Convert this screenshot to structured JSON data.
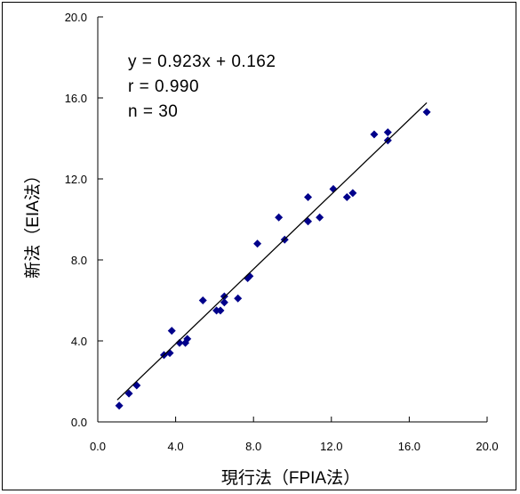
{
  "chart_data": {
    "type": "scatter",
    "title": "",
    "xlabel": "現行法（FPIA法）",
    "ylabel": "新法（EIA法）",
    "xlim": [
      0,
      20
    ],
    "ylim": [
      0,
      20
    ],
    "xticks": [
      "0.0",
      "4.0",
      "8.0",
      "12.0",
      "16.0",
      "20.0"
    ],
    "yticks": [
      "0.0",
      "4.0",
      "8.0",
      "12.0",
      "16.0",
      "20.0"
    ],
    "tick_values": [
      0,
      4,
      8,
      12,
      16,
      20
    ],
    "grid": false,
    "marker_color": "#00008b",
    "regression": {
      "slope": 0.923,
      "intercept": 0.162,
      "x_range": [
        1.0,
        16.9
      ]
    },
    "annotations": [
      "y = 0.923x + 0.162",
      "r = 0.990",
      "n = 30"
    ],
    "points": [
      {
        "x": 1.1,
        "y": 0.8
      },
      {
        "x": 1.6,
        "y": 1.4
      },
      {
        "x": 2.0,
        "y": 1.8
      },
      {
        "x": 3.4,
        "y": 3.3
      },
      {
        "x": 3.7,
        "y": 3.4
      },
      {
        "x": 3.8,
        "y": 4.5
      },
      {
        "x": 4.2,
        "y": 3.9
      },
      {
        "x": 4.5,
        "y": 3.9
      },
      {
        "x": 4.6,
        "y": 4.1
      },
      {
        "x": 5.4,
        "y": 6.0
      },
      {
        "x": 6.1,
        "y": 5.5
      },
      {
        "x": 6.3,
        "y": 5.5
      },
      {
        "x": 6.5,
        "y": 5.9
      },
      {
        "x": 6.5,
        "y": 6.2
      },
      {
        "x": 7.2,
        "y": 6.1
      },
      {
        "x": 7.7,
        "y": 7.1
      },
      {
        "x": 7.8,
        "y": 7.2
      },
      {
        "x": 8.2,
        "y": 8.8
      },
      {
        "x": 9.3,
        "y": 10.1
      },
      {
        "x": 9.6,
        "y": 9.0
      },
      {
        "x": 10.8,
        "y": 9.9
      },
      {
        "x": 10.8,
        "y": 11.1
      },
      {
        "x": 11.4,
        "y": 10.1
      },
      {
        "x": 12.1,
        "y": 11.5
      },
      {
        "x": 12.8,
        "y": 11.1
      },
      {
        "x": 13.1,
        "y": 11.3
      },
      {
        "x": 14.2,
        "y": 14.2
      },
      {
        "x": 14.9,
        "y": 13.9
      },
      {
        "x": 14.9,
        "y": 14.3
      },
      {
        "x": 16.9,
        "y": 15.3
      }
    ]
  }
}
